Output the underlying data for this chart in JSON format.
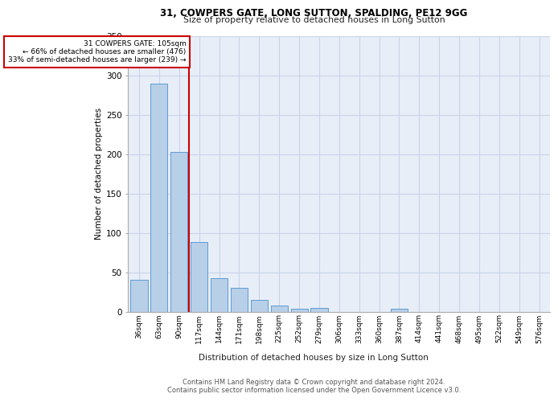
{
  "title1": "31, COWPERS GATE, LONG SUTTON, SPALDING, PE12 9GG",
  "title2": "Size of property relative to detached houses in Long Sutton",
  "xlabel": "Distribution of detached houses by size in Long Sutton",
  "ylabel": "Number of detached properties",
  "footer1": "Contains HM Land Registry data © Crown copyright and database right 2024.",
  "footer2": "Contains public sector information licensed under the Open Government Licence v3.0.",
  "annotation_line1": "31 COWPERS GATE: 105sqm",
  "annotation_line2": "← 66% of detached houses are smaller (476)",
  "annotation_line3": "33% of semi-detached houses are larger (239) →",
  "bar_values": [
    40,
    290,
    203,
    88,
    42,
    30,
    15,
    8,
    4,
    5,
    0,
    0,
    0,
    4,
    0,
    0,
    0,
    0,
    0,
    0,
    0
  ],
  "categories": [
    "36sqm",
    "63sqm",
    "90sqm",
    "117sqm",
    "144sqm",
    "171sqm",
    "198sqm",
    "225sqm",
    "252sqm",
    "279sqm",
    "306sqm",
    "333sqm",
    "360sqm",
    "387sqm",
    "414sqm",
    "441sqm",
    "468sqm",
    "495sqm",
    "522sqm",
    "549sqm",
    "576sqm"
  ],
  "bar_color": "#b8cfe8",
  "bar_edge_color": "#5b9bd5",
  "vline_color": "#cc0000",
  "annotation_box_color": "#cc0000",
  "grid_color": "#c8d4e8",
  "background_color": "#e8eef8",
  "ylim": [
    0,
    350
  ],
  "yticks": [
    0,
    50,
    100,
    150,
    200,
    250,
    300,
    350
  ],
  "vline_x": 2.5
}
